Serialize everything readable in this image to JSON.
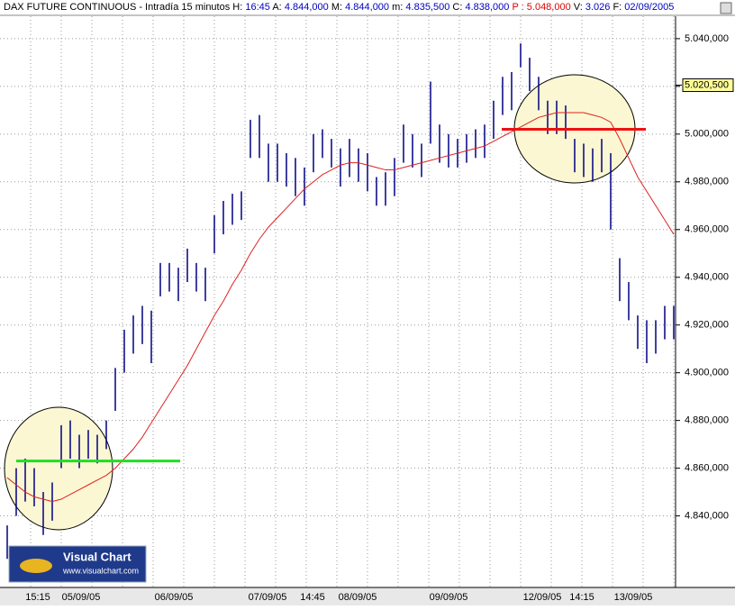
{
  "chart_data": {
    "type": "ohlc",
    "header": [
      {
        "text": "DAX FUTURE CONTINUOUS - Intradía 15 minutos",
        "color": "#000000"
      },
      {
        "text": "H:",
        "color": "#000000"
      },
      {
        "text": "16:45",
        "color": "#0000c0"
      },
      {
        "text": "A:",
        "color": "#000000"
      },
      {
        "text": "4.844,000",
        "color": "#0000c0"
      },
      {
        "text": "M:",
        "color": "#000000"
      },
      {
        "text": "4.844,000",
        "color": "#0000c0"
      },
      {
        "text": "m:",
        "color": "#000000"
      },
      {
        "text": "4.835,500",
        "color": "#0000c0"
      },
      {
        "text": "C:",
        "color": "#000000"
      },
      {
        "text": "4.838,000",
        "color": "#0000c0"
      },
      {
        "text": "P : 5.048,000",
        "color": "#e00000"
      },
      {
        "text": "V:",
        "color": "#000000"
      },
      {
        "text": "3.026",
        "color": "#0000c0"
      },
      {
        "text": "F:",
        "color": "#000000"
      },
      {
        "text": "02/09/2005",
        "color": "#0000c0"
      }
    ],
    "ylim": [
      4810,
      5049.4
    ],
    "yticks": [
      {
        "value": 4840,
        "label": "4.840,000"
      },
      {
        "value": 4860,
        "label": "4.860,000"
      },
      {
        "value": 4880,
        "label": "4.880,000"
      },
      {
        "value": 4900,
        "label": "4.900,000"
      },
      {
        "value": 4920,
        "label": "4.920,000"
      },
      {
        "value": 4940,
        "label": "4.940,000"
      },
      {
        "value": 4960,
        "label": "4.960,000"
      },
      {
        "value": 4980,
        "label": "4.980,000"
      },
      {
        "value": 5000,
        "label": "5.000,000"
      },
      {
        "value": 5020,
        "label": "5.020,000"
      },
      {
        "value": 5040,
        "label": "5.040,000"
      }
    ],
    "last_price": {
      "value": 5020.5,
      "label": "5.020,500"
    },
    "x_labels": [
      "15:15",
      "05/09/05",
      "06/09/05",
      "07/09/05",
      "14:45",
      "08/09/05",
      "09/09/05",
      "12/09/05",
      "14:15",
      "13/09/05"
    ],
    "series": [
      {
        "color": "#000080",
        "high": [
          4836,
          4860,
          4864,
          4860,
          4850,
          4854,
          4878,
          4880,
          4874,
          4876,
          4874,
          4880,
          4902,
          4918,
          4924,
          4928,
          4926,
          4946,
          4946,
          4944,
          4952,
          4946,
          4944,
          4966,
          4972,
          4975,
          4976,
          5006,
          5008,
          4996,
          4996,
          4992,
          4990,
          4986,
          5000,
          5002,
          4998,
          4994,
          4998,
          4994,
          4992,
          4982,
          4984,
          4990,
          5004,
          5000,
          4996,
          5022,
          5004,
          5000,
          4998,
          5000,
          5002,
          5004,
          5014,
          5024,
          5026,
          5038,
          5032,
          5024,
          5014,
          5014,
          5012,
          4998,
          4996,
          4994,
          4998,
          4992,
          4948,
          4938,
          4924,
          4922,
          4922,
          4928,
          4928
        ],
        "low": [
          4822,
          4840,
          4846,
          4844,
          4832,
          4838,
          4860,
          4864,
          4860,
          4864,
          4862,
          4868,
          4884,
          4900,
          4908,
          4912,
          4904,
          4932,
          4934,
          4930,
          4938,
          4934,
          4930,
          4950,
          4958,
          4962,
          4964,
          4990,
          4990,
          4980,
          4980,
          4978,
          4974,
          4970,
          4984,
          4990,
          4986,
          4978,
          4982,
          4980,
          4976,
          4970,
          4970,
          4974,
          4988,
          4986,
          4982,
          4996,
          4988,
          4986,
          4986,
          4988,
          4990,
          4990,
          4998,
          5008,
          5010,
          5028,
          5018,
          5010,
          5000,
          5000,
          4998,
          4984,
          4982,
          4980,
          4984,
          4960,
          4930,
          4922,
          4910,
          4904,
          4908,
          4914,
          4914
        ]
      },
      {
        "name": "MA",
        "color": "#e02020",
        "values": [
          4856,
          4853,
          4850,
          4848,
          4847,
          4846,
          4847,
          4849,
          4851,
          4853,
          4855,
          4857,
          4860,
          4864,
          4868,
          4873,
          4879,
          4885,
          4891,
          4897,
          4903,
          4910,
          4917,
          4924,
          4930,
          4937,
          4943,
          4950,
          4956,
          4961,
          4965,
          4969,
          4973,
          4977,
          4980,
          4983,
          4985,
          4987,
          4988,
          4988,
          4987,
          4986,
          4985,
          4985,
          4986,
          4987,
          4988,
          4989,
          4990,
          4991,
          4992,
          4993,
          4994,
          4995,
          4997,
          4999,
          5001,
          5003,
          5005,
          5007,
          5008,
          5009,
          5009,
          5009,
          5009,
          5008,
          5007,
          5005,
          4998,
          4990,
          4982,
          4976,
          4970,
          4964,
          4958
        ]
      }
    ],
    "levels": [
      {
        "value": 4863,
        "color": "#22dd22",
        "from": 1,
        "to": 19.2
      },
      {
        "value": 5002,
        "color": "#ee1111",
        "from": 54.9,
        "to": 70.9
      }
    ],
    "logo": {
      "title": "Visual Chart",
      "url": "www.visualchart.com"
    }
  }
}
